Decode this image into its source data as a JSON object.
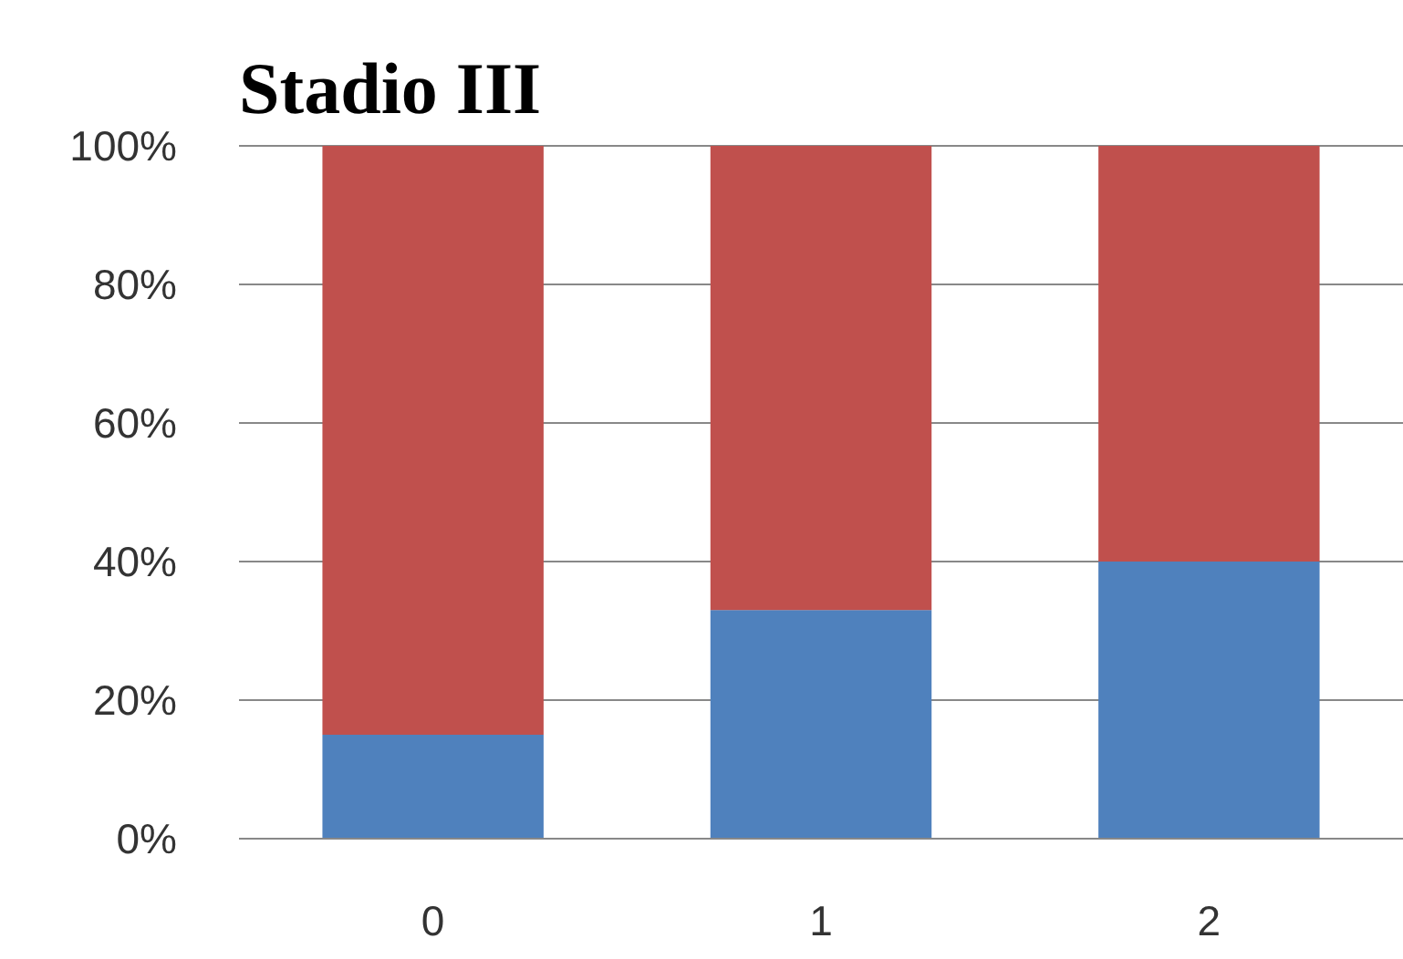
{
  "chart_data": {
    "type": "bar",
    "title": "Stadio III",
    "categories": [
      "0",
      "1",
      "2"
    ],
    "stacked": true,
    "series": [
      {
        "color": "#4f81bd",
        "values": [
          15,
          33,
          40
        ]
      },
      {
        "color": "#c0504d",
        "values": [
          85,
          67,
          60
        ]
      }
    ],
    "ylim": [
      0,
      100
    ],
    "yticks": [
      {
        "value": 0,
        "label": "0%"
      },
      {
        "value": 20,
        "label": "20%"
      },
      {
        "value": 40,
        "label": "40%"
      },
      {
        "value": 60,
        "label": "60%"
      },
      {
        "value": 80,
        "label": "80%"
      },
      {
        "value": 100,
        "label": "100%"
      }
    ],
    "grid": "y"
  }
}
